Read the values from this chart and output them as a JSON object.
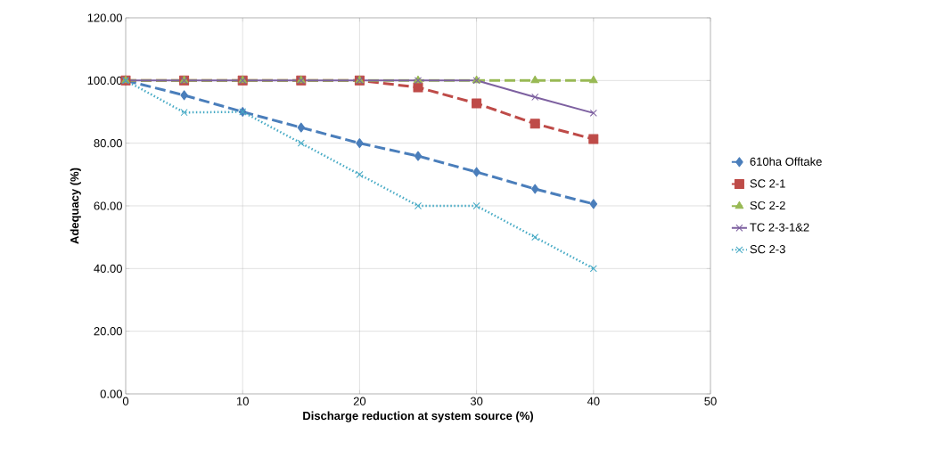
{
  "chart_data": {
    "type": "line",
    "xlabel": "Discharge reduction at system source (%)",
    "ylabel": "Adequacy (%)",
    "x": [
      0,
      5,
      10,
      15,
      20,
      25,
      30,
      35,
      40
    ],
    "series": [
      {
        "name": "610ha Offtake",
        "color": "#4a7ebb",
        "marker": "diamond",
        "line_style": "dashed",
        "values": [
          100,
          95.3,
          90,
          85,
          80,
          75.9,
          70.8,
          65.4,
          60.6
        ]
      },
      {
        "name": "SC 2-1",
        "color": "#be4b48",
        "marker": "square",
        "line_style": "dashed",
        "values": [
          100,
          100,
          100,
          100,
          100,
          97.8,
          92.7,
          86.2,
          81.3
        ]
      },
      {
        "name": "SC 2-2",
        "color": "#98b954",
        "marker": "triangle",
        "line_style": "dashed",
        "values": [
          100,
          100,
          100,
          100,
          100,
          100,
          100,
          100,
          100
        ]
      },
      {
        "name": "TC 2-3-1&2",
        "color": "#7d60a0",
        "marker": "cross",
        "line_style": "solid",
        "values": [
          100,
          100,
          100,
          100,
          100,
          100,
          100,
          94.7,
          89.6
        ]
      },
      {
        "name": "SC 2-3",
        "color": "#46aac5",
        "marker": "cross",
        "line_style": "dotted",
        "values": [
          100,
          89.8,
          90,
          80,
          70,
          60,
          60,
          50,
          40
        ]
      }
    ],
    "xlim": [
      0,
      50
    ],
    "xticks": [
      0,
      10,
      20,
      30,
      40,
      50
    ],
    "ylim": [
      0,
      120
    ],
    "yticks": [
      {
        "value": 0,
        "label": "0.00"
      },
      {
        "value": 20,
        "label": "20.00"
      },
      {
        "value": 40,
        "label": "40.00"
      },
      {
        "value": 60,
        "label": "60.00"
      },
      {
        "value": 80,
        "label": "80.00"
      },
      {
        "value": 100,
        "label": "100.00"
      },
      {
        "value": 120,
        "label": "120.00"
      }
    ],
    "grid": true,
    "legend": "right"
  }
}
